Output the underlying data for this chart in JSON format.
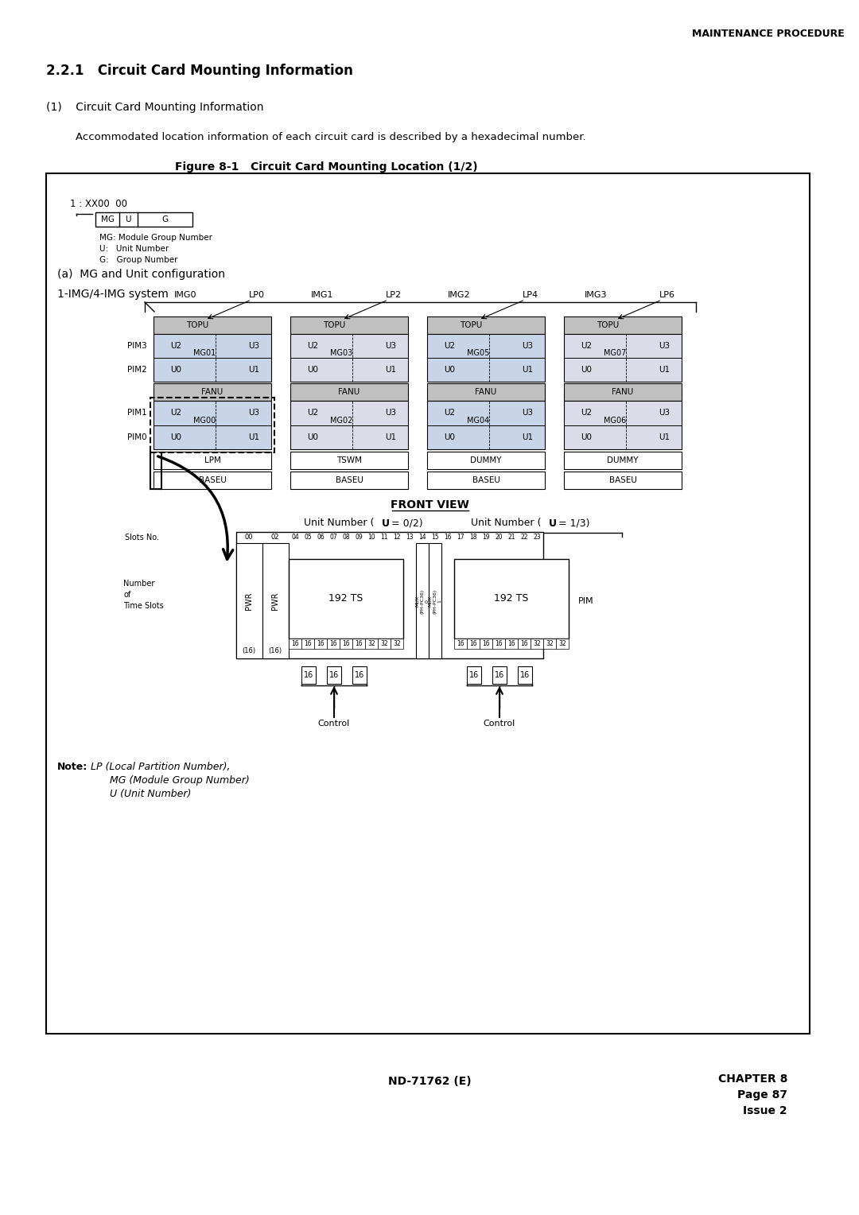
{
  "page_title_right": "MAINTENANCE PROCEDURE",
  "section_title": "2.2.1   Circuit Card Mounting Information",
  "subsection1": "(1)    Circuit Card Mounting Information",
  "body_text": "Accommodated location information of each circuit card is described by a hexadecimal number.",
  "figure_title": "Figure 8-1   Circuit Card Mounting Location (1/2)",
  "legend_address": "1 : XX00  00",
  "legend_lines": [
    "MG: Module Group Number",
    "U:   Unit Number",
    "G:   Group Number"
  ],
  "subsection_a": "(a)  MG and Unit configuration",
  "subsection_b": "1-IMG/4-IMG system",
  "img_labels": [
    "IMG0",
    "IMG1",
    "IMG2",
    "IMG3"
  ],
  "lp_labels": [
    "LP0",
    "LP2",
    "LP4",
    "LP6"
  ],
  "mg_labels_top": [
    "MG01",
    "MG03",
    "MG05",
    "MG07"
  ],
  "mg_labels_bottom": [
    "MG00",
    "MG02",
    "MG04",
    "MG06"
  ],
  "bottom_labels": [
    "LPM",
    "TSWM",
    "DUMMY",
    "DUMMY"
  ],
  "front_view": "FRONT VIEW",
  "slots_label": "Slots No.",
  "number_ts_label": [
    "Number",
    "of",
    "Time Slots"
  ],
  "ts_values": [
    16,
    16,
    16,
    16,
    16,
    16,
    32,
    32,
    32
  ],
  "pim_label": "PIM",
  "control_label": "Control",
  "note_bold": "Note:",
  "footer_center": "ND-71762 (E)",
  "footer_right1": "CHAPTER 8",
  "footer_right2": "Page 87",
  "footer_right3": "Issue 2",
  "bg_color": "#ffffff",
  "light_blue": "#c8d4e8",
  "medium_gray": "#c0c0c0",
  "light_gray": "#dcdce8"
}
